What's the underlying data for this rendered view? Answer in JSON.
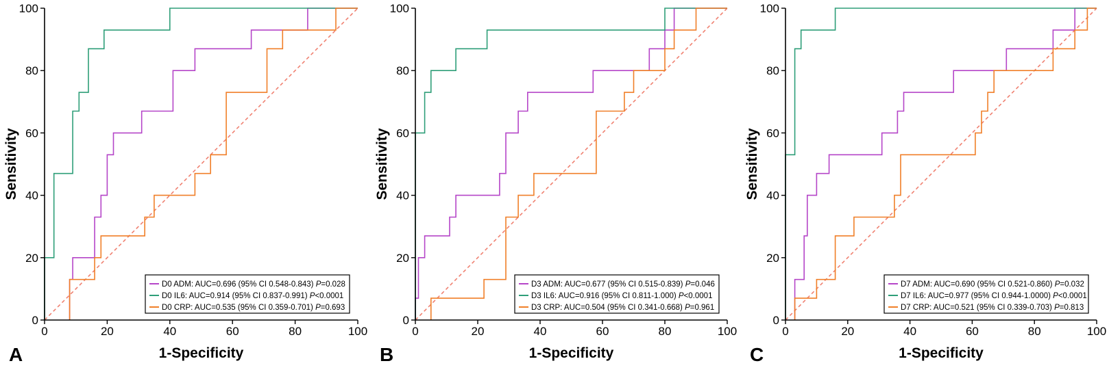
{
  "chart_data": [
    {
      "type": "line",
      "panel_letter": "A",
      "xlabel": "1-Specificity",
      "ylabel": "Sensitivity",
      "xlim": [
        0,
        100
      ],
      "ylim": [
        0,
        100
      ],
      "x_ticks": [
        "0",
        "20",
        "40",
        "60",
        "80",
        "100"
      ],
      "y_ticks": [
        "0",
        "20",
        "40",
        "60",
        "80",
        "100"
      ],
      "legend_position": "bottom-right",
      "diagonal_color": "#f08070",
      "series": [
        {
          "name": "D0 ADM",
          "color": "#b545c8",
          "legend": {
            "prefix": "D0 ADM: AUC=0.696 (95% CI 0.548-0.843) ",
            "p_label": "P",
            "p_value": "=0.028"
          },
          "x": [
            8,
            8,
            9,
            9,
            16,
            16,
            18,
            18,
            20,
            20,
            22,
            22,
            31,
            31,
            41,
            41,
            48,
            48,
            66,
            66,
            72,
            72,
            84,
            84,
            100
          ],
          "y": [
            0,
            13,
            13,
            20,
            20,
            33,
            33,
            40,
            40,
            53,
            53,
            60,
            60,
            67,
            67,
            80,
            80,
            87,
            87,
            93,
            93,
            93,
            93,
            100,
            100
          ]
        },
        {
          "name": "D0 IL6",
          "color": "#2e9e78",
          "legend": {
            "prefix": "D0 IL6: AUC=0.914 (95% CI 0.837-0.991) ",
            "p_label": "P",
            "p_value": "<0.0001"
          },
          "x": [
            0,
            0,
            3,
            3,
            9,
            9,
            11,
            11,
            14,
            14,
            19,
            19,
            40,
            40,
            100
          ],
          "y": [
            0,
            20,
            20,
            47,
            47,
            67,
            67,
            73,
            73,
            87,
            87,
            93,
            93,
            100,
            100
          ]
        },
        {
          "name": "D0 CRP",
          "color": "#f07f28",
          "legend": {
            "prefix": "D0 CRP: AUC=0.535 (95% CI 0.359-0.701) ",
            "p_label": "P",
            "p_value": "=0.693"
          },
          "x": [
            8,
            8,
            16,
            16,
            18,
            18,
            32,
            32,
            35,
            35,
            48,
            48,
            53,
            53,
            58,
            58,
            71,
            71,
            76,
            76,
            93,
            93,
            100
          ],
          "y": [
            0,
            13,
            13,
            20,
            20,
            27,
            27,
            33,
            33,
            40,
            40,
            47,
            47,
            53,
            53,
            73,
            73,
            87,
            87,
            93,
            93,
            100,
            100
          ]
        }
      ]
    },
    {
      "type": "line",
      "panel_letter": "B",
      "xlabel": "1-Specificity",
      "ylabel": "Sensitivity",
      "xlim": [
        0,
        100
      ],
      "ylim": [
        0,
        100
      ],
      "x_ticks": [
        "0",
        "20",
        "40",
        "60",
        "80",
        "100"
      ],
      "y_ticks": [
        "0",
        "20",
        "40",
        "60",
        "80",
        "100"
      ],
      "legend_position": "bottom-right",
      "diagonal_color": "#f08070",
      "series": [
        {
          "name": "D3 ADM",
          "color": "#b545c8",
          "legend": {
            "prefix": "D3 ADM: AUC=0.677 (95% CI 0.515-0.839) ",
            "p_label": "P",
            "p_value": "=0.046"
          },
          "x": [
            0,
            0,
            1,
            1,
            3,
            3,
            5,
            5,
            11,
            11,
            13,
            13,
            24,
            24,
            27,
            27,
            29,
            29,
            33,
            33,
            36,
            36,
            57,
            57,
            75,
            75,
            80,
            80,
            83,
            83,
            100
          ],
          "y": [
            0,
            7,
            7,
            20,
            20,
            27,
            27,
            27,
            27,
            33,
            33,
            40,
            40,
            40,
            40,
            47,
            47,
            60,
            60,
            67,
            67,
            73,
            73,
            80,
            80,
            87,
            87,
            93,
            93,
            100,
            100
          ]
        },
        {
          "name": "D3 IL6",
          "color": "#2e9e78",
          "legend": {
            "prefix": "D3 IL6: AUC=0.916 (95% CI 0.811-1.000) ",
            "p_label": "P",
            "p_value": "<0.0001"
          },
          "x": [
            0,
            0,
            3,
            3,
            5,
            5,
            13,
            13,
            23,
            23,
            80,
            80,
            100
          ],
          "y": [
            0,
            60,
            60,
            73,
            73,
            80,
            80,
            87,
            87,
            93,
            93,
            100,
            100
          ]
        },
        {
          "name": "D3 CRP",
          "color": "#f07f28",
          "legend": {
            "prefix": "D3 CRP: AUC=0.504 (95% CI 0.341-0.668) ",
            "p_label": "P",
            "p_value": "=0.961"
          },
          "x": [
            5,
            5,
            22,
            22,
            29,
            29,
            33,
            33,
            38,
            38,
            58,
            58,
            67,
            67,
            70,
            70,
            80,
            80,
            83,
            83,
            90,
            90,
            100
          ],
          "y": [
            0,
            7,
            7,
            13,
            13,
            33,
            33,
            40,
            40,
            47,
            47,
            67,
            67,
            73,
            73,
            80,
            80,
            87,
            87,
            93,
            93,
            100,
            100
          ]
        }
      ]
    },
    {
      "type": "line",
      "panel_letter": "C",
      "xlabel": "1-Specificity",
      "ylabel": "Sensitivity",
      "xlim": [
        0,
        100
      ],
      "ylim": [
        0,
        100
      ],
      "x_ticks": [
        "0",
        "20",
        "40",
        "60",
        "80",
        "100"
      ],
      "y_ticks": [
        "0",
        "20",
        "40",
        "60",
        "80",
        "100"
      ],
      "legend_position": "bottom-right",
      "diagonal_color": "#f08070",
      "series": [
        {
          "name": "D7 ADM",
          "color": "#b545c8",
          "legend": {
            "prefix": "D7 ADM: AUC=0.690 (95% CI 0.521-0.860) ",
            "p_label": "P",
            "p_value": "=0.032"
          },
          "x": [
            3,
            3,
            6,
            6,
            7,
            7,
            10,
            10,
            14,
            14,
            31,
            31,
            36,
            36,
            38,
            38,
            54,
            54,
            71,
            71,
            86,
            86,
            93,
            93,
            100
          ],
          "y": [
            0,
            13,
            13,
            27,
            27,
            40,
            40,
            47,
            47,
            53,
            53,
            60,
            60,
            67,
            67,
            73,
            73,
            80,
            80,
            87,
            87,
            93,
            93,
            100,
            100
          ]
        },
        {
          "name": "D7 IL6",
          "color": "#2e9e78",
          "legend": {
            "prefix": "D7 IL6: AUC=0.977 (95% CI 0.944-1.0000) ",
            "p_label": "P",
            "p_value": "<0.0001"
          },
          "x": [
            0,
            0,
            3,
            3,
            5,
            5,
            16,
            16,
            100
          ],
          "y": [
            0,
            53,
            53,
            87,
            87,
            93,
            93,
            100,
            100
          ]
        },
        {
          "name": "D7 CRP",
          "color": "#f07f28",
          "legend": {
            "prefix": "D7 CRP: AUC=0.521 (95% CI 0.339-0.703) ",
            "p_label": "P",
            "p_value": "=0.813"
          },
          "x": [
            3,
            3,
            10,
            10,
            16,
            16,
            22,
            22,
            35,
            35,
            37,
            37,
            61,
            61,
            63,
            63,
            65,
            65,
            67,
            67,
            69,
            69,
            86,
            86,
            93,
            93,
            97,
            97,
            100
          ],
          "y": [
            0,
            7,
            7,
            13,
            13,
            27,
            27,
            33,
            33,
            40,
            40,
            53,
            53,
            60,
            60,
            67,
            67,
            73,
            73,
            80,
            80,
            80,
            80,
            87,
            87,
            93,
            93,
            100,
            100
          ]
        }
      ]
    }
  ]
}
